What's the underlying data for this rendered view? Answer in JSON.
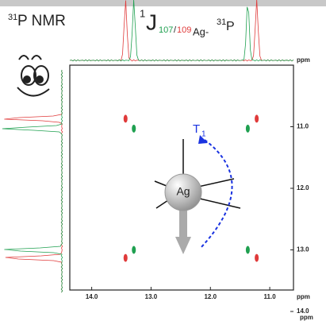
{
  "chart_data": {
    "type": "scatter",
    "title": {
      "sup": "31",
      "text": "P NMR"
    },
    "coupling_label": {
      "sup1": "1",
      "J": "J",
      "sub_green": "107",
      "slash": "/",
      "sub_red": "109",
      "sub_rest": "Ag-",
      "sup2": "31",
      "P": "P"
    },
    "xlabel": "ppm",
    "ylabel": "ppm",
    "projection_label": "ppm",
    "atom_label": "Ag",
    "relaxation_label": {
      "T": "T",
      "sub": "1"
    },
    "xlim": [
      14.12,
      10.6
    ],
    "ylim": [
      10.0,
      14.0
    ],
    "xticks": [
      {
        "value": 14,
        "label": "14.0"
      },
      {
        "value": 13,
        "label": "13.0"
      },
      {
        "value": 12,
        "label": "12.0"
      },
      {
        "value": 11,
        "label": "11.0"
      }
    ],
    "yticks": [
      {
        "value": 11,
        "label": "11.0"
      },
      {
        "value": 12,
        "label": "12.0"
      },
      {
        "value": 13,
        "label": "13.0"
      },
      {
        "value": 14,
        "label": "14.0"
      }
    ],
    "series": [
      {
        "color": "#e03a3a",
        "x": [
          13.43,
          11.22,
          13.43,
          11.22
        ],
        "y": [
          10.87,
          10.87,
          13.13,
          13.13
        ]
      },
      {
        "color": "#1fa050",
        "x": [
          13.29,
          11.37,
          13.29,
          11.37
        ],
        "y": [
          11.03,
          11.03,
          13.0,
          13.0
        ]
      }
    ]
  }
}
